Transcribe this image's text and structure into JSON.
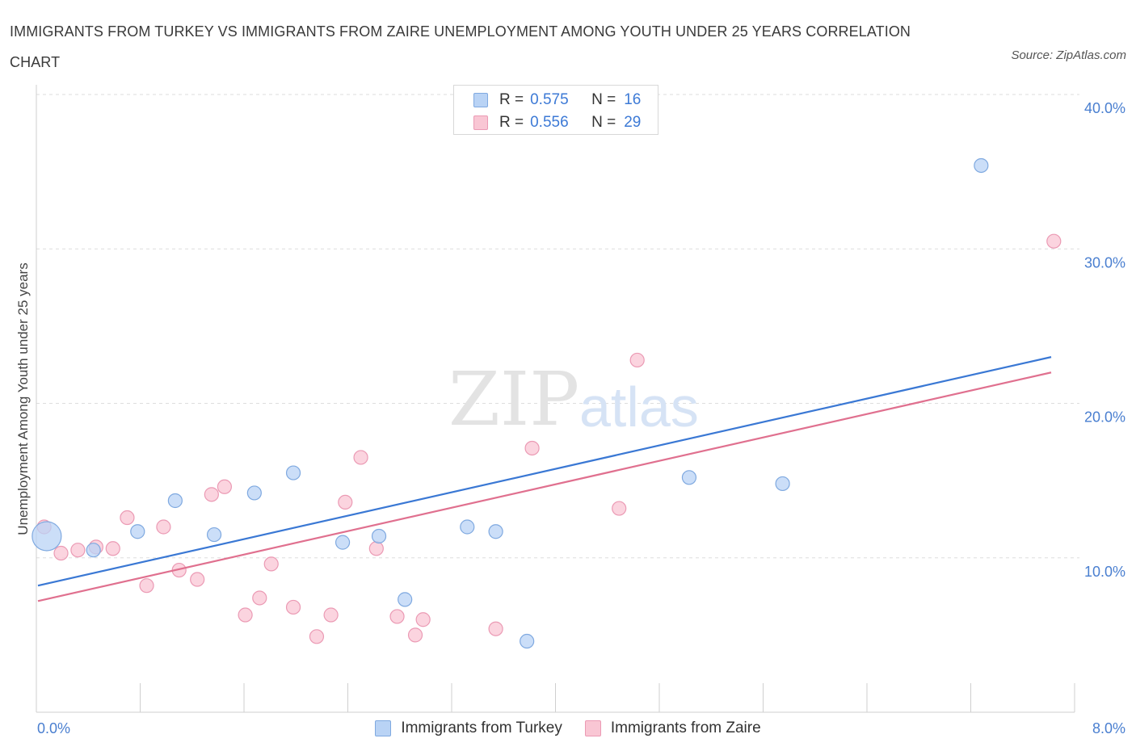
{
  "header": {
    "title": "IMMIGRANTS FROM TURKEY VS IMMIGRANTS FROM ZAIRE UNEMPLOYMENT AMONG YOUTH UNDER 25 YEARS CORRELATION CHART",
    "source": "Source: ZipAtlas.com"
  },
  "watermark": {
    "zip": "ZIP",
    "atlas": "atlas"
  },
  "colors": {
    "turkey_fill": "#b9d3f5",
    "turkey_stroke": "#7fa9e0",
    "turkey_line": "#3a78d4",
    "zaire_fill": "#f9c6d4",
    "zaire_stroke": "#eb9ab4",
    "zaire_line": "#e0708f",
    "tick_label": "#4a7fd0",
    "grid": "#dddddd"
  },
  "legend_top": [
    {
      "r_label": "R =",
      "r_value": "0.575",
      "n_label": "N =",
      "n_value": "16"
    },
    {
      "r_label": "R =",
      "r_value": "0.556",
      "n_label": "N =",
      "n_value": "29"
    }
  ],
  "chart_data": {
    "type": "scatter",
    "title": "IMMIGRANTS FROM TURKEY VS IMMIGRANTS FROM ZAIRE UNEMPLOYMENT AMONG YOUTH UNDER 25 YEARS CORRELATION CHART",
    "xlabel": "",
    "ylabel": "Unemployment Among Youth under 25 years",
    "xlim": [
      0,
      8
    ],
    "ylim": [
      0,
      40
    ],
    "x_tick_labels": [
      "0.0%",
      "8.0%"
    ],
    "y_ticks": [
      10,
      20,
      30,
      40
    ],
    "y_tick_labels": [
      "10.0%",
      "20.0%",
      "30.0%",
      "40.0%"
    ],
    "grid": true,
    "legend_position": "bottom",
    "series": [
      {
        "name": "Immigrants from Turkey",
        "r": 0.575,
        "n": 16,
        "trend": [
          [
            0,
            8.2
          ],
          [
            8,
            23.0
          ]
        ],
        "points": [
          {
            "x": 0.08,
            "y": 11.4,
            "big": true
          },
          {
            "x": 0.44,
            "y": 10.5
          },
          {
            "x": 0.78,
            "y": 11.7
          },
          {
            "x": 1.07,
            "y": 13.7
          },
          {
            "x": 1.37,
            "y": 11.5
          },
          {
            "x": 1.68,
            "y": 14.2
          },
          {
            "x": 1.98,
            "y": 15.5
          },
          {
            "x": 2.36,
            "y": 11.0
          },
          {
            "x": 2.64,
            "y": 11.4
          },
          {
            "x": 2.84,
            "y": 7.3
          },
          {
            "x": 3.32,
            "y": 12.0
          },
          {
            "x": 3.54,
            "y": 11.7
          },
          {
            "x": 3.78,
            "y": 4.6
          },
          {
            "x": 5.03,
            "y": 15.2
          },
          {
            "x": 5.75,
            "y": 14.8
          },
          {
            "x": 7.28,
            "y": 35.4
          }
        ]
      },
      {
        "name": "Immigrants from Zaire",
        "r": 0.556,
        "n": 29,
        "trend": [
          [
            0,
            7.2
          ],
          [
            8,
            22.0
          ]
        ],
        "points": [
          {
            "x": 0.06,
            "y": 12.0
          },
          {
            "x": 0.19,
            "y": 10.3
          },
          {
            "x": 0.32,
            "y": 10.5
          },
          {
            "x": 0.46,
            "y": 10.7
          },
          {
            "x": 0.59,
            "y": 10.6
          },
          {
            "x": 0.7,
            "y": 12.6
          },
          {
            "x": 0.85,
            "y": 8.2
          },
          {
            "x": 0.98,
            "y": 12.0
          },
          {
            "x": 1.1,
            "y": 9.2
          },
          {
            "x": 1.24,
            "y": 8.6
          },
          {
            "x": 1.35,
            "y": 14.1
          },
          {
            "x": 1.45,
            "y": 14.6
          },
          {
            "x": 1.61,
            "y": 6.3
          },
          {
            "x": 1.72,
            "y": 7.4
          },
          {
            "x": 1.81,
            "y": 9.6
          },
          {
            "x": 1.98,
            "y": 6.8
          },
          {
            "x": 2.16,
            "y": 4.9
          },
          {
            "x": 2.27,
            "y": 6.3
          },
          {
            "x": 2.38,
            "y": 13.6
          },
          {
            "x": 2.5,
            "y": 16.5
          },
          {
            "x": 2.62,
            "y": 10.6
          },
          {
            "x": 2.78,
            "y": 6.2
          },
          {
            "x": 2.92,
            "y": 5.0
          },
          {
            "x": 2.98,
            "y": 6.0
          },
          {
            "x": 3.54,
            "y": 5.4
          },
          {
            "x": 3.82,
            "y": 17.1
          },
          {
            "x": 4.49,
            "y": 13.2
          },
          {
            "x": 4.63,
            "y": 22.8
          },
          {
            "x": 7.84,
            "y": 30.5
          }
        ]
      }
    ]
  }
}
